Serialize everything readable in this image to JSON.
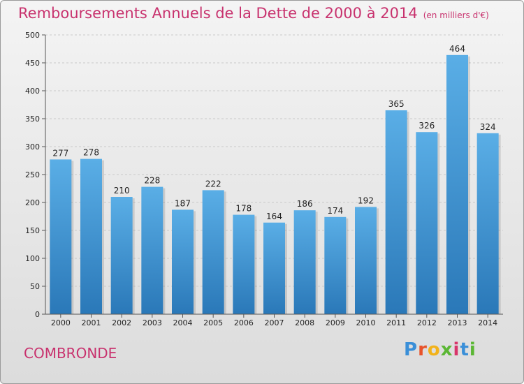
{
  "header": {
    "title": "Remboursements Annuels de la Dette de 2000 à 2014",
    "subtitle": "(en milliers d'€)"
  },
  "footer": {
    "town": "COMBRONDE",
    "logo_letters": [
      "P",
      "r",
      "o",
      "x",
      "i",
      "t",
      "i"
    ],
    "logo_colors": [
      "#3a8fd8",
      "#e8532a",
      "#f2b21a",
      "#5bb734",
      "#d8356a",
      "#3a8fd8",
      "#5bb734"
    ]
  },
  "chart_data": {
    "type": "bar",
    "title": "Remboursements Annuels de la Dette de 2000 à 2014",
    "subtitle": "(en milliers d'€)",
    "categories": [
      "2000",
      "2001",
      "2002",
      "2003",
      "2004",
      "2005",
      "2006",
      "2007",
      "2008",
      "2009",
      "2010",
      "2011",
      "2012",
      "2013",
      "2014"
    ],
    "values": [
      277,
      278,
      210,
      228,
      187,
      222,
      178,
      164,
      186,
      174,
      192,
      365,
      326,
      464,
      324
    ],
    "ylim": [
      0,
      500
    ],
    "yticks": [
      0,
      50,
      100,
      150,
      200,
      250,
      300,
      350,
      400,
      450,
      500
    ],
    "grid": true,
    "bar_color_top": "#5aaee6",
    "bar_color_bottom": "#2a78b8"
  }
}
